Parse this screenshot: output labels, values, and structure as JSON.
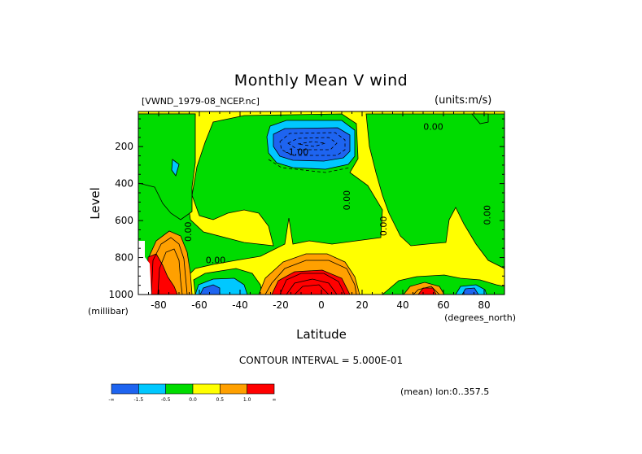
{
  "chart_data": {
    "type": "contour",
    "title": "Monthly Mean V wind",
    "dataset_label": "[VWND_1979-08_NCEP.nc]",
    "units_label": "(units:m/s)",
    "xlabel": "Latitude",
    "x_units": "(degrees_north)",
    "ylabel": "Level",
    "y_units": "(millibar)",
    "xlim": [
      -90,
      90
    ],
    "ylim": [
      1000,
      10
    ],
    "x_ticks": [
      -80,
      -60,
      -40,
      -20,
      0,
      20,
      40,
      60,
      80
    ],
    "y_ticks": [
      200,
      400,
      600,
      800,
      1000
    ],
    "contour_interval_text": "CONTOUR INTERVAL = 5.000E-01",
    "contour_labels": [
      {
        "text": "0.00",
        "lat": 55,
        "lev": 110
      },
      {
        "text": "-1.00",
        "lat": -12,
        "lev": 245
      },
      {
        "text": "0.00",
        "lat": 14,
        "lev": 490
      },
      {
        "text": "0.00",
        "lat": 32,
        "lev": 630
      },
      {
        "text": "0.00",
        "lat": -64,
        "lev": 660
      },
      {
        "text": "0.00",
        "lat": 83,
        "lev": 570
      },
      {
        "text": "0.00",
        "lat": -52,
        "lev": 830
      }
    ],
    "colorbar": {
      "colors": [
        "#1e64f0",
        "#00c8ff",
        "#00dc00",
        "#ffff00",
        "#ffa000",
        "#ff0000"
      ],
      "labels": [
        "-∞",
        "-1.5",
        "-0.5",
        "0.0",
        "0.5",
        "1.0",
        "∞"
      ]
    },
    "mean_text": "(mean) lon:0..357.5"
  }
}
